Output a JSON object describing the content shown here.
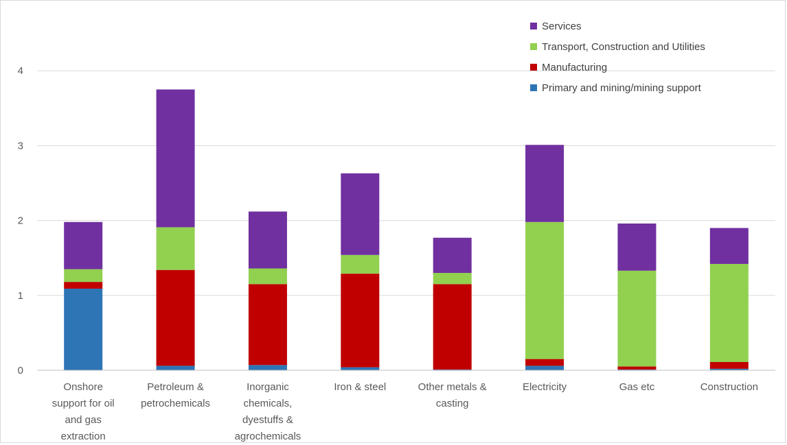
{
  "chart_data": {
    "type": "bar",
    "stacked": true,
    "title": "",
    "xlabel": "",
    "ylabel": "",
    "ylim": [
      0,
      4.5
    ],
    "yticks": [
      0,
      1,
      2,
      3,
      4
    ],
    "grid": true,
    "legend_position": "top-right",
    "categories": [
      [
        "Onshore",
        "support for oil",
        "and gas",
        "extraction"
      ],
      [
        "Petroleum &",
        "petrochemicals"
      ],
      [
        "Inorganic",
        "chemicals,",
        "dyestuffs &",
        "agrochemicals"
      ],
      [
        "Iron & steel"
      ],
      [
        "Other metals &",
        "casting"
      ],
      [
        "Electricity"
      ],
      [
        "Gas etc"
      ],
      [
        "Construction"
      ]
    ],
    "series": [
      {
        "name": "Primary and mining/mining support",
        "color": "#2e75b6",
        "values": [
          1.09,
          0.06,
          0.07,
          0.04,
          0.01,
          0.06,
          0.01,
          0.02
        ]
      },
      {
        "name": "Manufacturing",
        "color": "#c00000",
        "values": [
          0.09,
          1.28,
          1.08,
          1.25,
          1.14,
          0.09,
          0.04,
          0.09
        ]
      },
      {
        "name": "Transport, Construction and Utilities",
        "color": "#92d050",
        "values": [
          0.17,
          0.57,
          0.21,
          0.25,
          0.15,
          1.83,
          1.28,
          1.31
        ]
      },
      {
        "name": "Services",
        "color": "#7030a0",
        "values": [
          0.63,
          1.84,
          0.76,
          1.09,
          0.47,
          1.03,
          0.63,
          0.48
        ]
      }
    ]
  }
}
